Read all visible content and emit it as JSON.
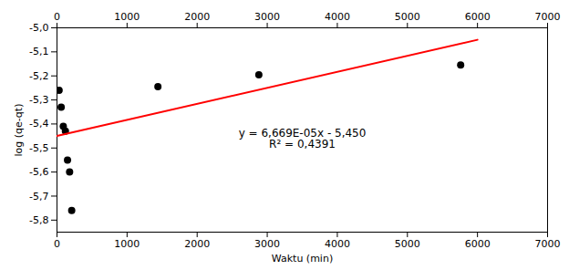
{
  "chart_data": {
    "type": "scatter",
    "xlabel": "Waktu (min)",
    "ylabel": "log (qe-qt)",
    "series": [
      {
        "type": "scatter",
        "color": "#000000",
        "x": [
          30,
          60,
          90,
          120,
          150,
          180,
          210,
          1440,
          2880,
          5760
        ],
        "values": [
          -5.26,
          -5.33,
          -5.41,
          -5.43,
          -5.55,
          -5.6,
          -5.76,
          -5.245,
          -5.195,
          -5.155
        ]
      },
      {
        "type": "line",
        "color": "#FF0000",
        "x": [
          0,
          6000
        ],
        "values": [
          -5.45,
          -5.04986
        ]
      }
    ],
    "annotations": [
      {
        "text": "y = 6,669E-05x - 5,450\nR² = 0,4391",
        "x": 3500,
        "y": -5.42
      }
    ],
    "xlim": [
      0,
      7000
    ],
    "ylim": [
      -5.85,
      -5.0
    ],
    "xticks": [
      0,
      1000,
      2000,
      3000,
      4000,
      5000,
      6000,
      7000
    ],
    "yticks": [
      {
        "value": -5.8,
        "label": "-5,8"
      },
      {
        "value": -5.7,
        "label": "-5,7"
      },
      {
        "value": -5.6,
        "label": "-5,6"
      },
      {
        "value": -5.5,
        "label": "-5,5"
      },
      {
        "value": -5.4,
        "label": "-5,4"
      },
      {
        "value": -5.3,
        "label": "-5,3"
      },
      {
        "value": -5.2,
        "label": "-5,2"
      },
      {
        "value": -5.1,
        "label": "-5,1"
      },
      {
        "value": -5.0,
        "label": "-5,0"
      }
    ],
    "grid": false
  }
}
